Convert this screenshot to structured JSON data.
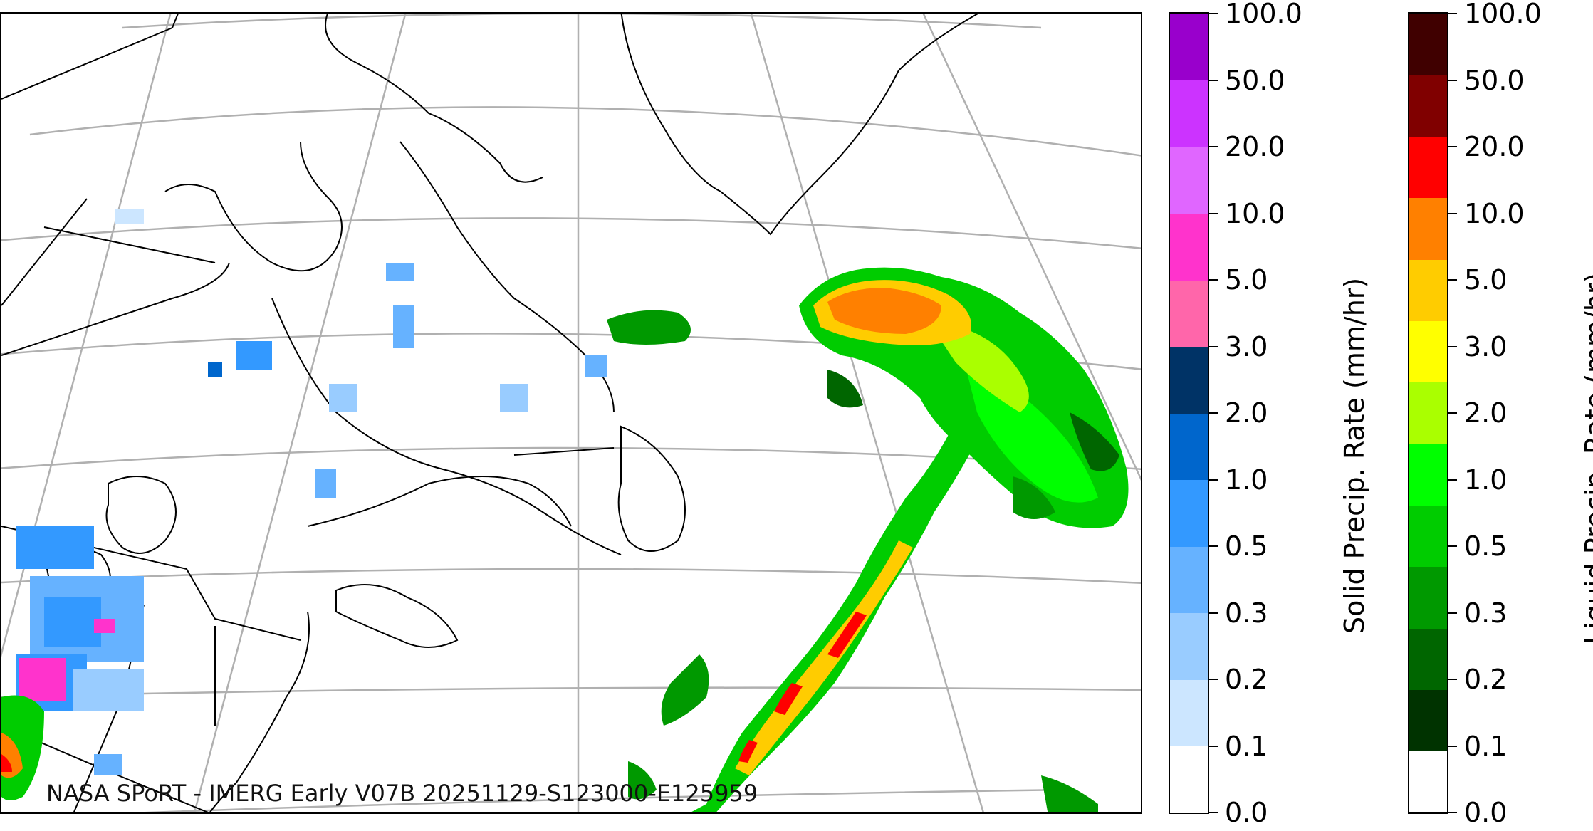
{
  "credit_text": "NASA SPoRT - IMERG Early V07B 20251129-S123000-E125959",
  "colorbars": [
    {
      "label": "Solid Precip. Rate (mm/hr)",
      "ticks": [
        "0.0",
        "0.1",
        "0.2",
        "0.3",
        "0.5",
        "1.0",
        "2.0",
        "3.0",
        "5.0",
        "10.0",
        "20.0",
        "50.0",
        "100.0"
      ],
      "colors": [
        "#ffffff",
        "#cce6ff",
        "#99ccff",
        "#66b2ff",
        "#3399ff",
        "#0066cc",
        "#003366",
        "#ff66aa",
        "#ff33cc",
        "#e066ff",
        "#cc33ff",
        "#9900cc"
      ]
    },
    {
      "label": "Liquid Precip. Rate (mm/hr)",
      "ticks": [
        "0.0",
        "0.1",
        "0.2",
        "0.3",
        "0.5",
        "1.0",
        "2.0",
        "3.0",
        "5.0",
        "10.0",
        "20.0",
        "50.0",
        "100.0"
      ],
      "colors": [
        "#ffffff",
        "#003300",
        "#006600",
        "#009900",
        "#00cc00",
        "#00ff00",
        "#aaff00",
        "#ffff00",
        "#ffcc00",
        "#ff8000",
        "#ff0000",
        "#800000",
        "#400000"
      ]
    }
  ]
}
